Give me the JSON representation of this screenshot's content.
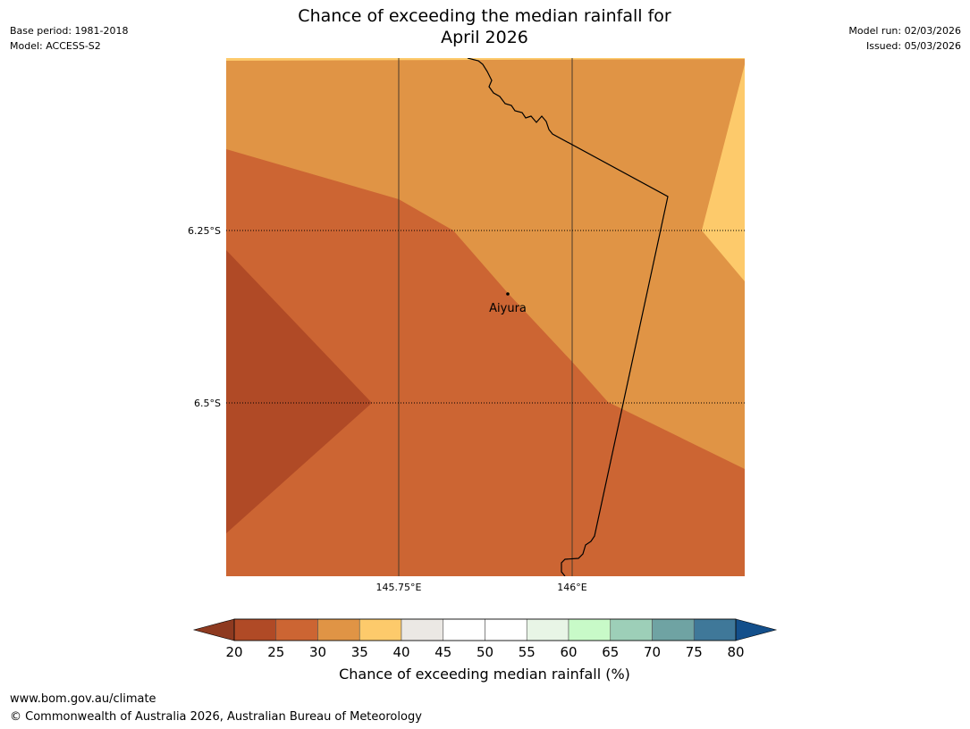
{
  "header": {
    "title_line1": "Chance of exceeding the median rainfall for",
    "title_line2": "April 2026",
    "base_period": "Base period: 1981-2018",
    "model": "Model: ACCESS-S2",
    "model_run": "Model run: 02/03/2026",
    "issued": "Issued: 05/03/2026"
  },
  "map": {
    "lat_labels": [
      "6.25°S",
      "6.5°S"
    ],
    "lon_labels": [
      "145.75°E",
      "146°E"
    ],
    "place": {
      "name": "Aiyura"
    }
  },
  "legend": {
    "title": "Chance of exceeding median rainfall (%)",
    "ticks": [
      "20",
      "25",
      "30",
      "35",
      "40",
      "45",
      "50",
      "55",
      "60",
      "65",
      "70",
      "75",
      "80"
    ],
    "colors": [
      "#b04a26",
      "#cc6533",
      "#e09445",
      "#fdca6b",
      "#ebe8e4",
      "#ffffff",
      "#ffffff",
      "#e8f5e6",
      "#c8fac8",
      "#9dcfb8",
      "#6fa3a3",
      "#3f7899"
    ],
    "under_color": "#8e3a20",
    "over_color": "#134f8b"
  },
  "footer": {
    "url": "www.bom.gov.au/climate",
    "copyright": "© Commonwealth of Australia 2026, Australian Bureau of Meteorology"
  }
}
